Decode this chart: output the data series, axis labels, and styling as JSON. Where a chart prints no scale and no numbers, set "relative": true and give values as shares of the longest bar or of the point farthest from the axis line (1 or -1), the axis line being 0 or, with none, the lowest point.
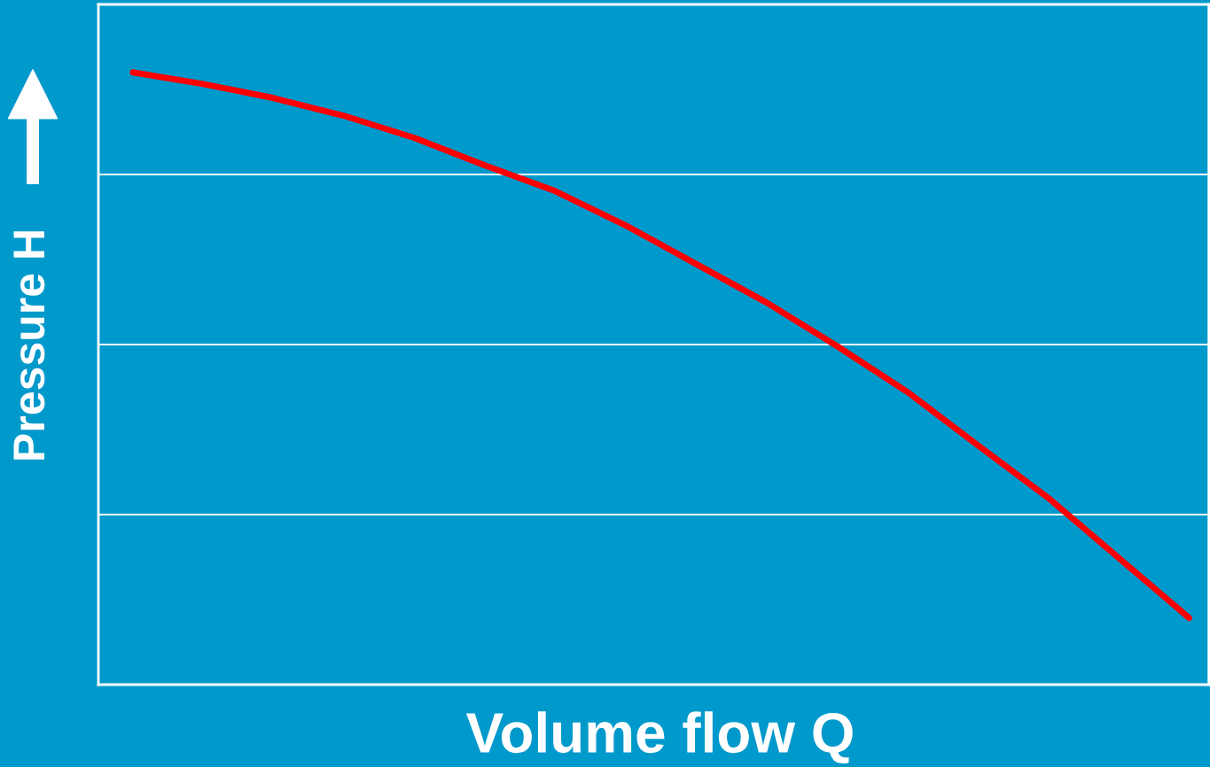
{
  "chart_data": {
    "type": "line",
    "xlabel": "Volume flow Q",
    "ylabel": "Pressure H",
    "relative": true,
    "grid": "y",
    "marker": "none",
    "line_style": "solid",
    "categories": [
      null,
      null,
      null,
      null,
      null,
      null,
      null,
      null,
      null,
      null,
      null,
      null,
      null,
      null,
      null,
      null
    ],
    "series": [
      {
        "color": "#ff0000",
        "values": [
          1.0,
          0.981,
          0.958,
          0.929,
          0.893,
          0.848,
          0.806,
          0.75,
          0.687,
          0.624,
          0.553,
          0.478,
          0.391,
          0.305,
          0.207,
          0.109
        ]
      }
    ]
  }
}
